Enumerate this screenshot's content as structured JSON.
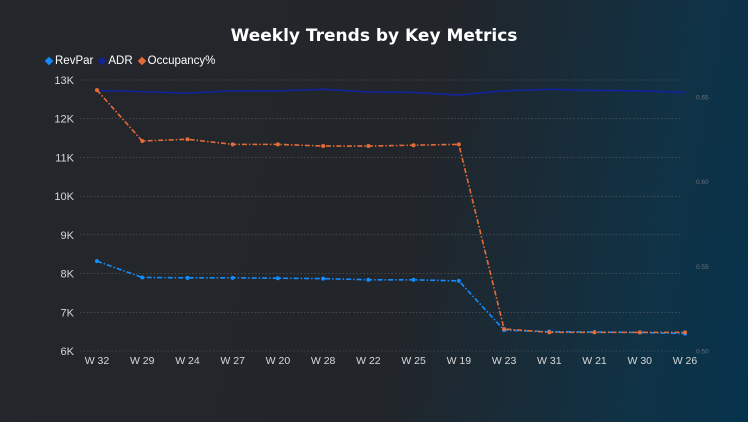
{
  "chart_data": {
    "type": "line",
    "title": "Weekly Trends by Key Metrics",
    "xlabel": "",
    "ylabel": "",
    "categories": [
      "W 32",
      "W 29",
      "W 24",
      "W 27",
      "W 20",
      "W 28",
      "W 22",
      "W 25",
      "W 19",
      "W 23",
      "W 31",
      "W 21",
      "W 30",
      "W 26"
    ],
    "y_left": {
      "min": 6000,
      "max": 13000,
      "ticks": [
        6000,
        7000,
        8000,
        9000,
        10000,
        11000,
        12000,
        13000
      ],
      "tick_labels": [
        "6K",
        "7K",
        "8K",
        "9K",
        "10K",
        "11K",
        "12K",
        "13K"
      ]
    },
    "y_right": {
      "min": 0.5,
      "max": 0.66,
      "ticks": [
        0.5,
        0.55,
        0.6,
        0.65
      ],
      "tick_labels": [
        "0.50",
        "0.55",
        "0.60",
        "0.65"
      ]
    },
    "series": [
      {
        "name": "RevPar",
        "axis": "left",
        "color": "#118dff",
        "dash": "dashdot",
        "values": [
          8320,
          7900,
          7890,
          7890,
          7880,
          7870,
          7840,
          7840,
          7810,
          6540,
          6500,
          6490,
          6480,
          6450
        ]
      },
      {
        "name": "ADR",
        "axis": "left",
        "color": "#12239e",
        "dash": "solid",
        "values": [
          12730,
          12700,
          12660,
          12720,
          12720,
          12760,
          12690,
          12680,
          12610,
          12720,
          12760,
          12730,
          12720,
          12680
        ]
      },
      {
        "name": "Occupancy%",
        "axis": "right",
        "color": "#e66c37",
        "dash": "dashdot",
        "values": [
          0.654,
          0.624,
          0.625,
          0.622,
          0.622,
          0.621,
          0.621,
          0.6215,
          0.622,
          0.513,
          0.511,
          0.511,
          0.511,
          0.511
        ]
      }
    ],
    "grid": true,
    "legend_position": "top-left"
  }
}
